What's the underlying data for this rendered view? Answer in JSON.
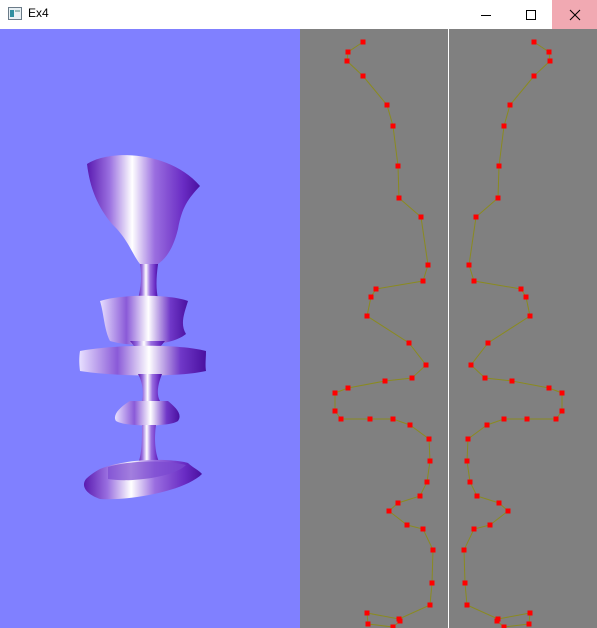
{
  "window": {
    "title": "Ex4",
    "controls": {
      "minimize": "minimize-icon",
      "maximize": "maximize-icon",
      "close": "close-icon"
    }
  },
  "colors": {
    "viewport_bg": "#8080ff",
    "panel_bg": "#808080",
    "divider": "#ffffff",
    "control_point": "#ff0000",
    "profile_line": "#8a8a20",
    "close_hover": "#f1a9b2",
    "vase_light": "#ffffff",
    "vase_dark": "#5a1ab0"
  }
}
